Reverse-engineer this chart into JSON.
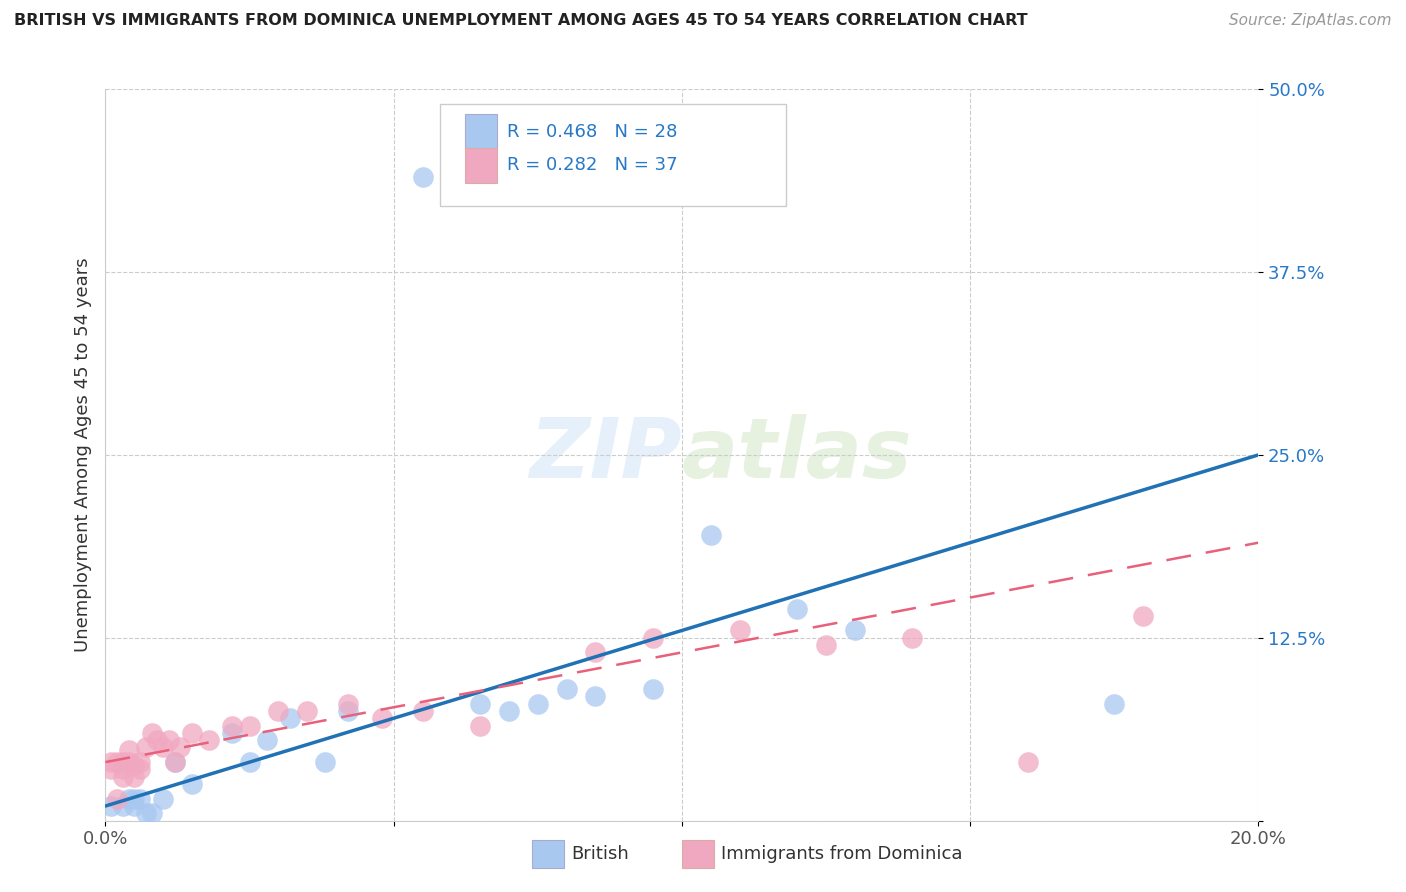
{
  "title": "BRITISH VS IMMIGRANTS FROM DOMINICA UNEMPLOYMENT AMONG AGES 45 TO 54 YEARS CORRELATION CHART",
  "source": "Source: ZipAtlas.com",
  "ylabel": "Unemployment Among Ages 45 to 54 years",
  "xlim": [
    0,
    0.2
  ],
  "ylim": [
    0,
    0.5
  ],
  "xticks": [
    0.0,
    0.05,
    0.1,
    0.15,
    0.2
  ],
  "xtick_labels": [
    "0.0%",
    "",
    "",
    "",
    "20.0%"
  ],
  "yticks": [
    0.0,
    0.125,
    0.25,
    0.375,
    0.5
  ],
  "ytick_labels": [
    "",
    "12.5%",
    "25.0%",
    "37.5%",
    "50.0%"
  ],
  "british_color": "#a8c8f0",
  "dominica_color": "#f0a8c0",
  "british_line_color": "#2171b5",
  "dominica_line_color": "#e8607a",
  "legend_text_color": "#2878c8",
  "british_R": 0.468,
  "british_N": 28,
  "dominica_R": 0.282,
  "dominica_N": 37,
  "british_x": [
    0.001,
    0.003,
    0.004,
    0.005,
    0.005,
    0.006,
    0.007,
    0.008,
    0.01,
    0.012,
    0.015,
    0.022,
    0.025,
    0.028,
    0.032,
    0.038,
    0.042,
    0.055,
    0.065,
    0.07,
    0.075,
    0.08,
    0.085,
    0.095,
    0.105,
    0.12,
    0.13,
    0.175
  ],
  "british_y": [
    0.01,
    0.01,
    0.015,
    0.01,
    0.015,
    0.015,
    0.005,
    0.005,
    0.015,
    0.04,
    0.025,
    0.06,
    0.04,
    0.055,
    0.07,
    0.04,
    0.075,
    0.44,
    0.08,
    0.075,
    0.08,
    0.09,
    0.085,
    0.09,
    0.195,
    0.145,
    0.13,
    0.08
  ],
  "dominica_x": [
    0.001,
    0.001,
    0.002,
    0.002,
    0.003,
    0.003,
    0.003,
    0.004,
    0.004,
    0.005,
    0.005,
    0.006,
    0.006,
    0.007,
    0.008,
    0.009,
    0.01,
    0.011,
    0.012,
    0.013,
    0.015,
    0.018,
    0.022,
    0.025,
    0.03,
    0.035,
    0.042,
    0.048,
    0.055,
    0.065,
    0.085,
    0.095,
    0.11,
    0.125,
    0.14,
    0.16,
    0.18
  ],
  "dominica_y": [
    0.035,
    0.04,
    0.04,
    0.015,
    0.03,
    0.04,
    0.035,
    0.04,
    0.048,
    0.03,
    0.038,
    0.035,
    0.04,
    0.05,
    0.06,
    0.055,
    0.05,
    0.055,
    0.04,
    0.05,
    0.06,
    0.055,
    0.065,
    0.065,
    0.075,
    0.075,
    0.08,
    0.07,
    0.075,
    0.065,
    0.115,
    0.125,
    0.13,
    0.12,
    0.125,
    0.04,
    0.14
  ],
  "british_line_x0": 0.0,
  "british_line_y0": 0.01,
  "british_line_x1": 0.2,
  "british_line_y1": 0.25,
  "dominica_line_x0": 0.0,
  "dominica_line_y0": 0.04,
  "dominica_line_x1": 0.2,
  "dominica_line_y1": 0.19
}
